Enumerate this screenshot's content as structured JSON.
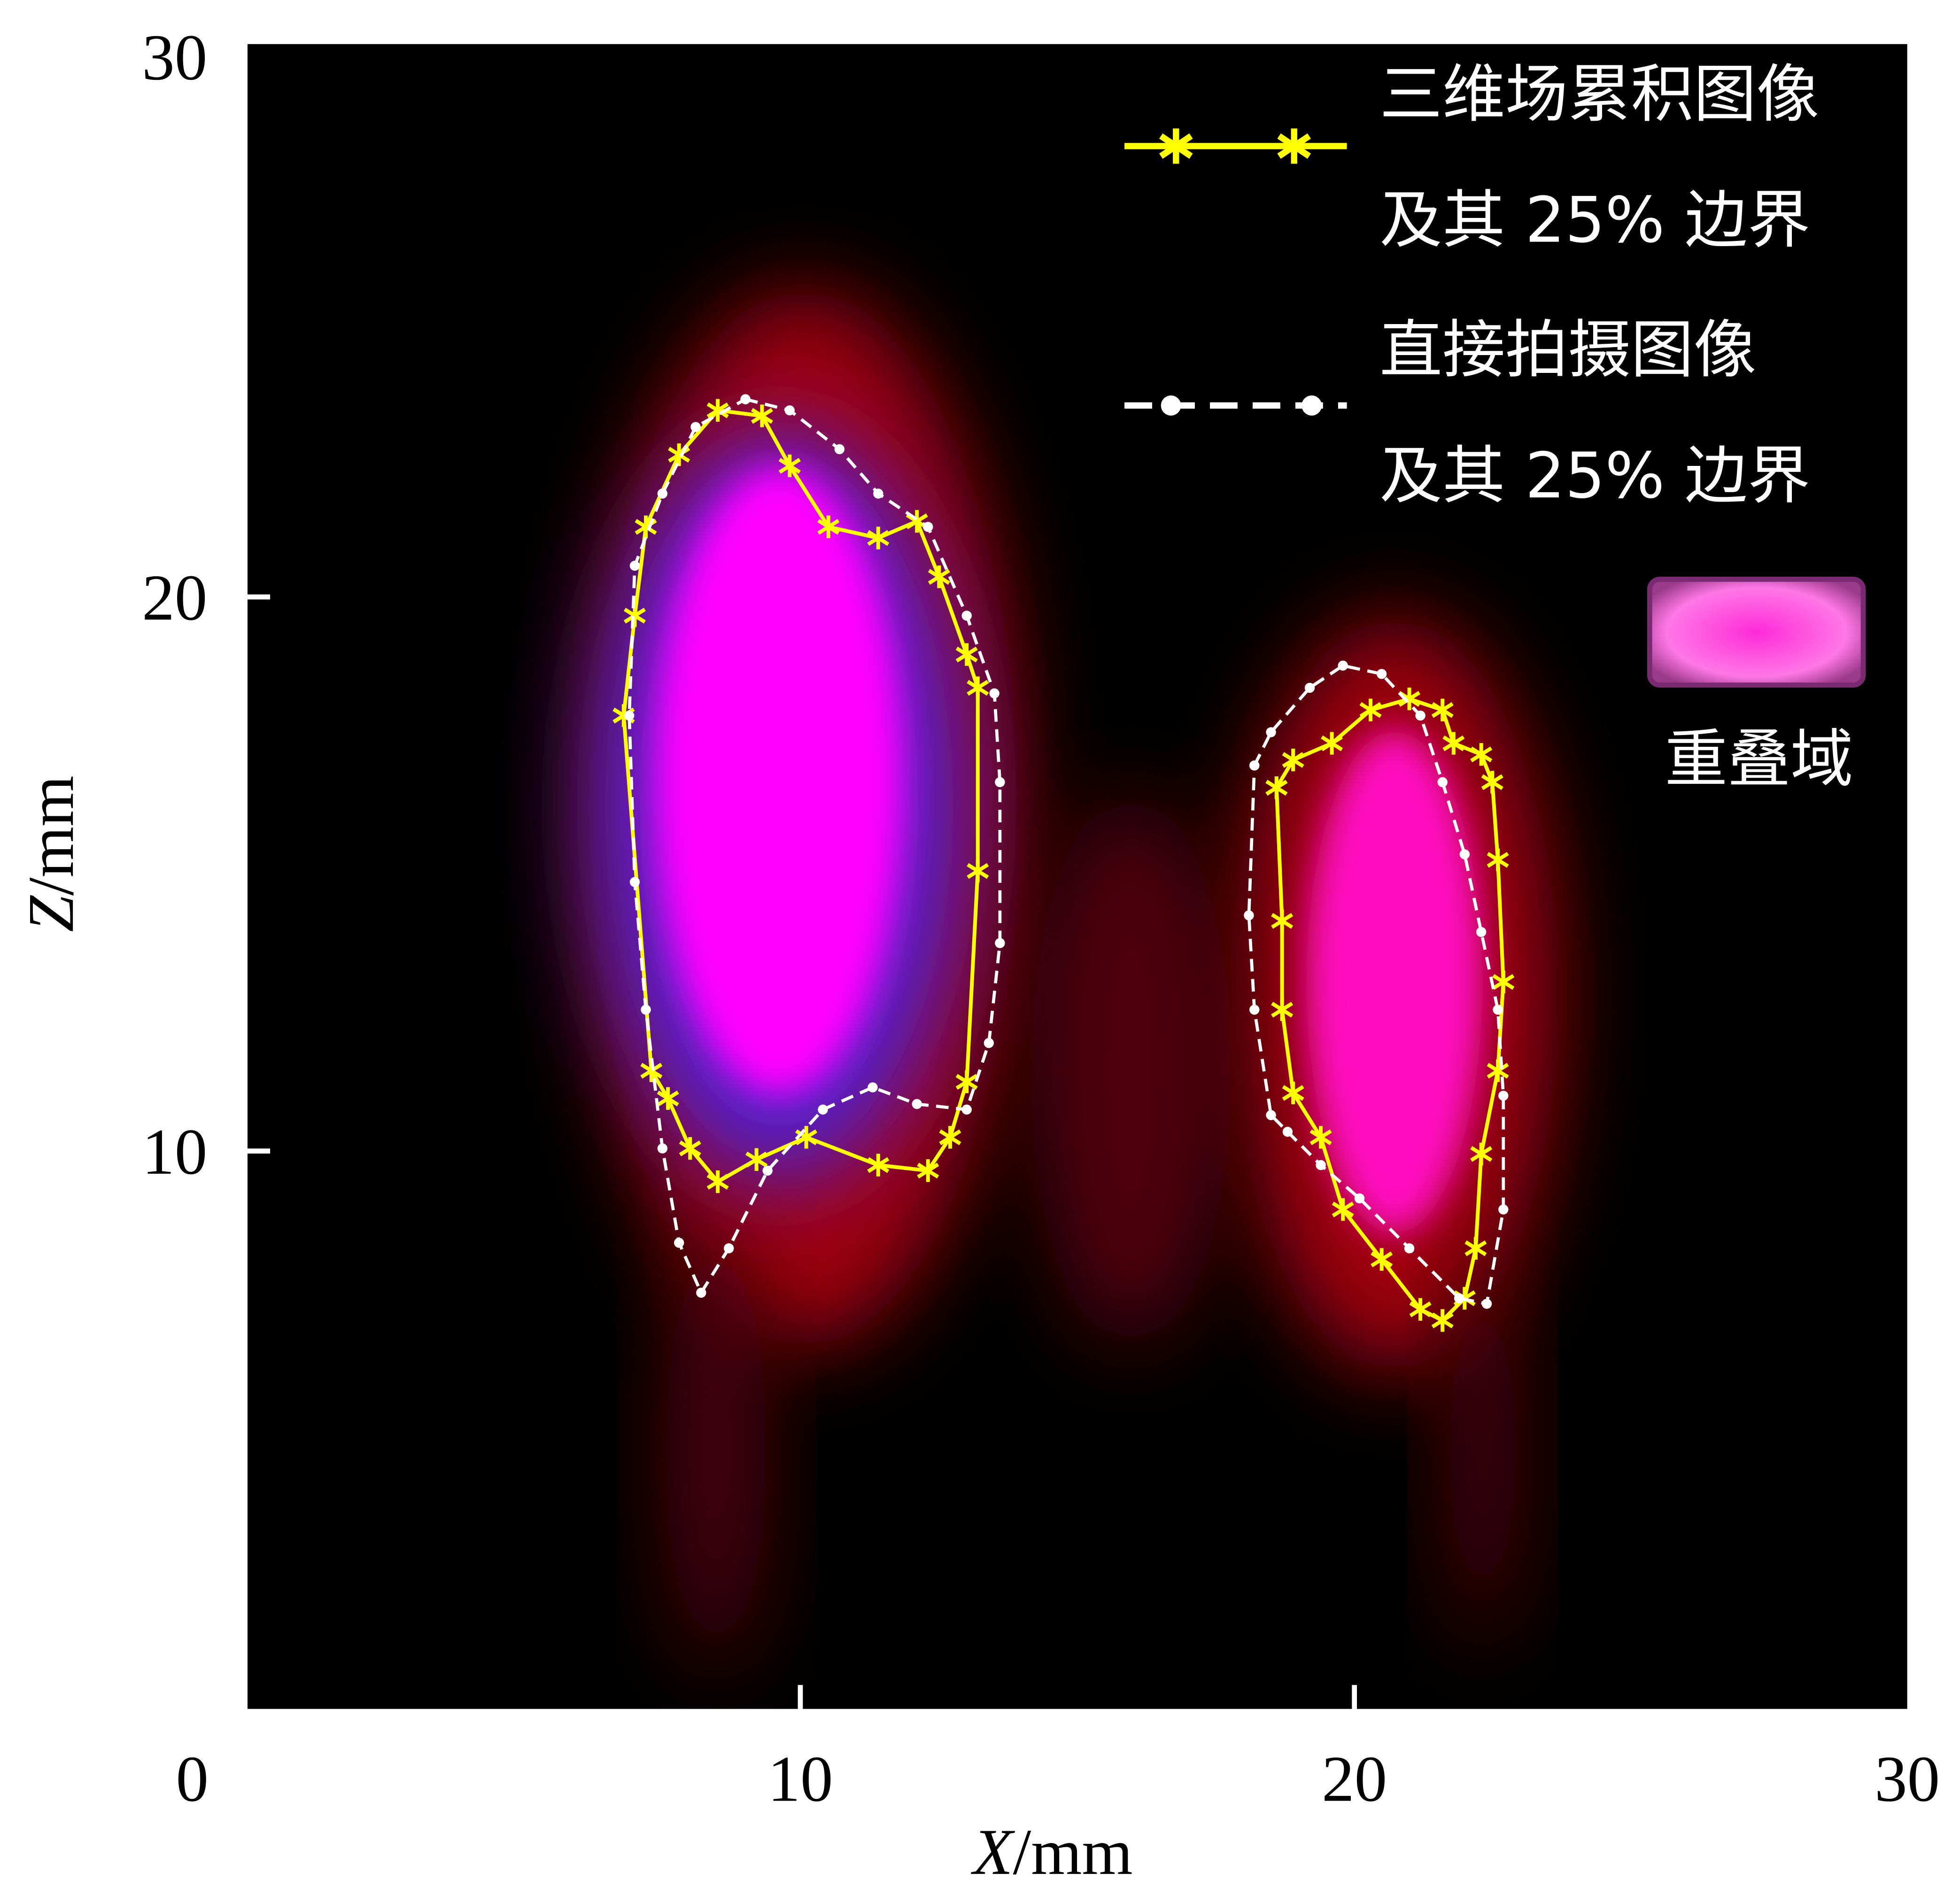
{
  "chart_data": {
    "type": "line",
    "title": "",
    "xlabel": "X/mm",
    "ylabel": "Z/mm",
    "xlabel_italic": "X",
    "xlabel_unit": "/mm",
    "ylabel_italic": "Z",
    "ylabel_unit": "/mm",
    "xlim": [
      0,
      30
    ],
    "ylim": [
      0,
      30
    ],
    "x_ticks": [
      0,
      10,
      20,
      30
    ],
    "y_ticks": [
      10,
      20,
      30
    ],
    "x_tick_labels": [
      "0",
      "10",
      "20",
      "30"
    ],
    "y_tick_labels": [
      "10",
      "20",
      "30"
    ],
    "grid": false,
    "legend_placement": "top-right",
    "legend": {
      "series1_line1": "三维场累积图像",
      "series1_line2": "及其 25% 边界",
      "series2_line1": "直接拍摄图像",
      "series2_line2": "及其 25% 边界",
      "overlap_label": "重叠域"
    },
    "colors": {
      "series1": "#ffff00",
      "series2": "#ffffff",
      "overlap": "#ff33dd",
      "background": "#000000"
    },
    "series": [
      {
        "name": "三维场累积图像及其25%边界 (左)",
        "style": "yellow-star-solid",
        "points": [
          [
            6.8,
            17.9
          ],
          [
            7.0,
            19.7
          ],
          [
            7.2,
            21.3
          ],
          [
            7.8,
            22.6
          ],
          [
            8.5,
            23.4
          ],
          [
            9.3,
            23.3
          ],
          [
            9.8,
            22.4
          ],
          [
            10.5,
            21.3
          ],
          [
            11.4,
            21.1
          ],
          [
            12.1,
            21.4
          ],
          [
            12.5,
            20.4
          ],
          [
            13.0,
            19.0
          ],
          [
            13.2,
            18.4
          ],
          [
            13.2,
            15.1
          ],
          [
            13.0,
            11.3
          ],
          [
            12.7,
            10.3
          ],
          [
            12.3,
            9.7
          ],
          [
            11.4,
            9.8
          ],
          [
            10.1,
            10.3
          ],
          [
            9.2,
            9.9
          ],
          [
            8.5,
            9.5
          ],
          [
            8.0,
            10.1
          ],
          [
            7.6,
            11.0
          ],
          [
            7.3,
            11.5
          ],
          [
            6.8,
            17.9
          ]
        ]
      },
      {
        "name": "直接拍摄图像及其25%边界 (左)",
        "style": "white-dot-dashed",
        "points": [
          [
            9.0,
            23.6
          ],
          [
            9.8,
            23.4
          ],
          [
            10.7,
            22.7
          ],
          [
            11.4,
            21.9
          ],
          [
            12.3,
            21.3
          ],
          [
            13.0,
            19.7
          ],
          [
            13.5,
            18.3
          ],
          [
            13.6,
            16.7
          ],
          [
            13.6,
            13.8
          ],
          [
            13.4,
            12.0
          ],
          [
            13.0,
            10.8
          ],
          [
            12.1,
            10.9
          ],
          [
            11.3,
            11.2
          ],
          [
            10.4,
            10.8
          ],
          [
            9.4,
            9.7
          ],
          [
            8.7,
            8.3
          ],
          [
            8.2,
            7.5
          ],
          [
            7.8,
            8.4
          ],
          [
            7.5,
            10.1
          ],
          [
            7.2,
            12.6
          ],
          [
            7.0,
            14.9
          ],
          [
            6.9,
            17.9
          ],
          [
            7.0,
            20.6
          ],
          [
            7.5,
            21.9
          ],
          [
            8.1,
            23.1
          ],
          [
            9.0,
            23.6
          ]
        ]
      },
      {
        "name": "三维场累积图像及其25%边界 (右)",
        "style": "yellow-star-solid",
        "points": [
          [
            18.6,
            16.6
          ],
          [
            18.9,
            17.1
          ],
          [
            19.6,
            17.4
          ],
          [
            20.3,
            18.0
          ],
          [
            21.0,
            18.2
          ],
          [
            21.6,
            18.0
          ],
          [
            21.8,
            17.4
          ],
          [
            22.3,
            17.2
          ],
          [
            22.5,
            16.7
          ],
          [
            22.6,
            15.3
          ],
          [
            22.7,
            13.1
          ],
          [
            22.6,
            11.5
          ],
          [
            22.3,
            10.0
          ],
          [
            22.2,
            8.3
          ],
          [
            22.0,
            7.4
          ],
          [
            21.6,
            7.0
          ],
          [
            21.2,
            7.2
          ],
          [
            20.5,
            8.1
          ],
          [
            19.8,
            9.0
          ],
          [
            19.4,
            10.3
          ],
          [
            18.9,
            11.1
          ],
          [
            18.7,
            12.6
          ],
          [
            18.7,
            14.2
          ],
          [
            18.6,
            16.6
          ]
        ]
      },
      {
        "name": "直接拍摄图像及其25%边界 (右)",
        "style": "white-dot-dashed",
        "points": [
          [
            18.2,
            17.0
          ],
          [
            18.5,
            17.6
          ],
          [
            19.2,
            18.4
          ],
          [
            19.8,
            18.8
          ],
          [
            20.5,
            18.65
          ],
          [
            21.2,
            17.9
          ],
          [
            21.6,
            16.7
          ],
          [
            22.0,
            15.4
          ],
          [
            22.3,
            14.0
          ],
          [
            22.6,
            12.6
          ],
          [
            22.7,
            11.05
          ],
          [
            22.7,
            9.0
          ],
          [
            22.4,
            7.3
          ],
          [
            21.9,
            7.4
          ],
          [
            21.0,
            8.3
          ],
          [
            20.1,
            9.2
          ],
          [
            19.4,
            9.8
          ],
          [
            18.8,
            10.4
          ],
          [
            18.5,
            10.7
          ],
          [
            18.2,
            12.6
          ],
          [
            18.1,
            14.3
          ],
          [
            18.2,
            17.0
          ]
        ]
      }
    ]
  }
}
